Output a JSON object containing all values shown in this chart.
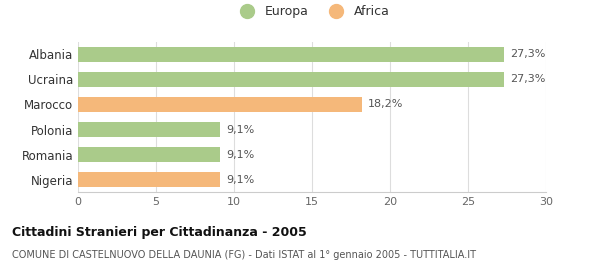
{
  "categories": [
    "Albania",
    "Ucraina",
    "Marocco",
    "Polonia",
    "Romania",
    "Nigeria"
  ],
  "values": [
    27.3,
    27.3,
    18.2,
    9.1,
    9.1,
    9.1
  ],
  "labels": [
    "27,3%",
    "27,3%",
    "18,2%",
    "9,1%",
    "9,1%",
    "9,1%"
  ],
  "colors": [
    "#aacb8a",
    "#aacb8a",
    "#f5b87a",
    "#aacb8a",
    "#aacb8a",
    "#f5b87a"
  ],
  "legend_labels": [
    "Europa",
    "Africa"
  ],
  "legend_colors": [
    "#aacb8a",
    "#f5b87a"
  ],
  "xlim": [
    0,
    30
  ],
  "xticks": [
    0,
    5,
    10,
    15,
    20,
    25,
    30
  ],
  "title": "Cittadini Stranieri per Cittadinanza - 2005",
  "subtitle": "COMUNE DI CASTELNUOVO DELLA DAUNIA (FG) - Dati ISTAT al 1° gennaio 2005 - TUTTITALIA.IT",
  "background_color": "#ffffff"
}
